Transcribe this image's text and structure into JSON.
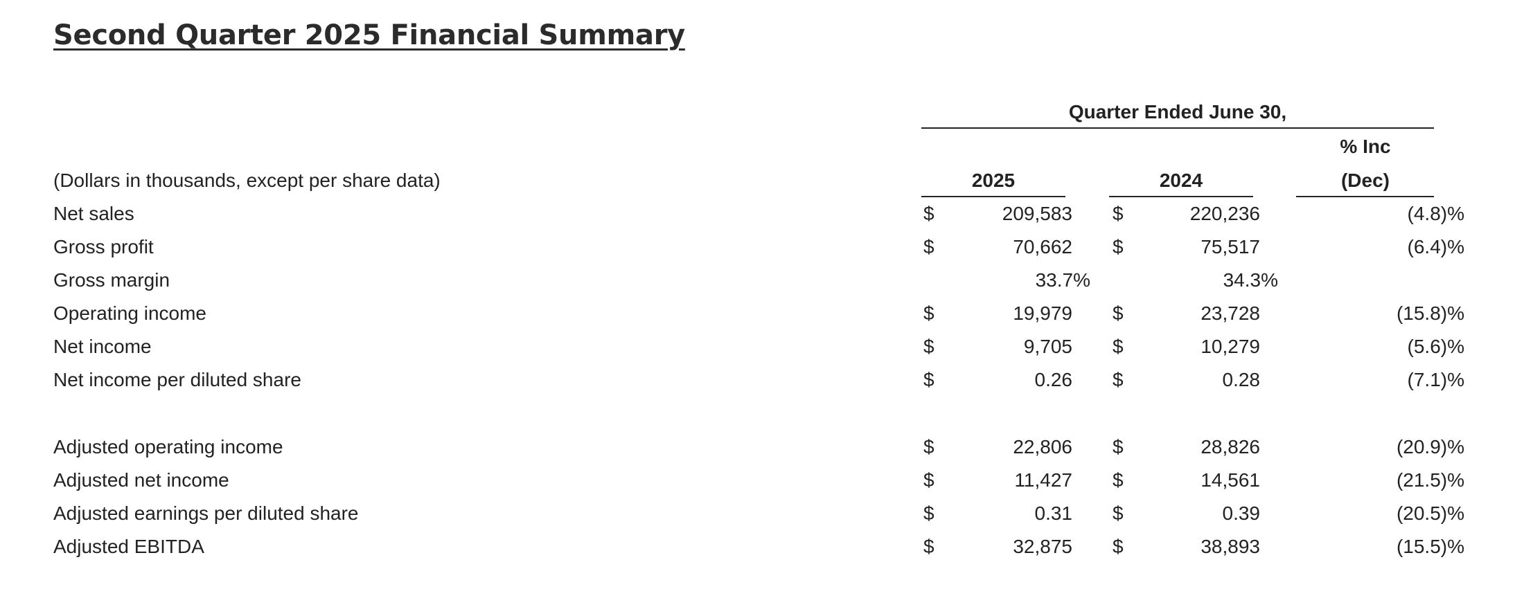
{
  "title": "Second Quarter 2025 Financial Summary",
  "header": {
    "period": "Quarter Ended June 30,",
    "col_2025": "2025",
    "col_2024": "2024",
    "change_line1": "% Inc",
    "change_line2": "(Dec)"
  },
  "units_note": "(Dollars in thousands, except per share data)",
  "rows": [
    {
      "label": "Net sales",
      "dollar1": "$",
      "v2025": "209,583",
      "dollar2": "$",
      "v2024": "220,236",
      "change": "(4.8)%"
    },
    {
      "label": "Gross profit",
      "dollar1": "$",
      "v2025": "70,662",
      "dollar2": "$",
      "v2024": "75,517",
      "change": "(6.4)%"
    },
    {
      "label": "Gross margin",
      "p2025": "33.7%",
      "p2024": "34.3%"
    },
    {
      "label": "Operating income",
      "dollar1": "$",
      "v2025": "19,979",
      "dollar2": "$",
      "v2024": "23,728",
      "change": "(15.8)%"
    },
    {
      "label": "Net income",
      "dollar1": "$",
      "v2025": "9,705",
      "dollar2": "$",
      "v2024": "10,279",
      "change": "(5.6)%"
    },
    {
      "label": "Net income per diluted share",
      "dollar1": "$",
      "v2025": "0.26",
      "dollar2": "$",
      "v2024": "0.28",
      "change": "(7.1)%"
    }
  ],
  "adjusted_rows": [
    {
      "label": "Adjusted operating income",
      "dollar1": "$",
      "v2025": "22,806",
      "dollar2": "$",
      "v2024": "28,826",
      "change": "(20.9)%"
    },
    {
      "label": "Adjusted net income",
      "dollar1": "$",
      "v2025": "11,427",
      "dollar2": "$",
      "v2024": "14,561",
      "change": "(21.5)%"
    },
    {
      "label": "Adjusted earnings per diluted share",
      "dollar1": "$",
      "v2025": "0.31",
      "dollar2": "$",
      "v2024": "0.39",
      "change": "(20.5)%"
    },
    {
      "label": "Adjusted EBITDA",
      "dollar1": "$",
      "v2025": "32,875",
      "dollar2": "$",
      "v2024": "38,893",
      "change": "(15.5)%"
    }
  ]
}
